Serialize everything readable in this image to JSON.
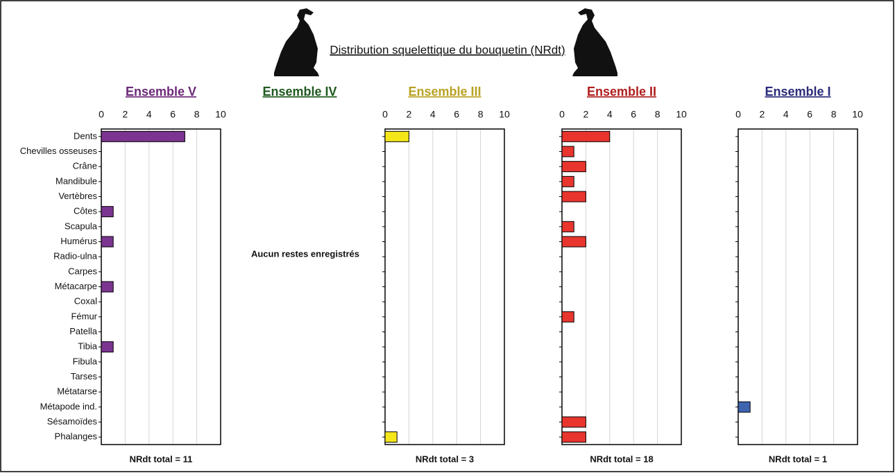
{
  "title": "Distribution squelettique du bouquetin (NRdt)",
  "chart_data": [
    {
      "type": "bar",
      "title": "Ensemble V",
      "title_color": "#6b2a78",
      "color": "#7b3590",
      "categories": [
        "Dents",
        "Chevilles osseuses",
        "Crâne",
        "Mandibule",
        "Vertèbres",
        "Côtes",
        "Scapula",
        "Humérus",
        "Radio-ulna",
        "Carpes",
        "Métacarpe",
        "Coxal",
        "Fémur",
        "Patella",
        "Tibia",
        "Fibula",
        "Tarses",
        "Métatarse",
        "Métapode ind.",
        "Sésamoïdes",
        "Phalanges"
      ],
      "values": [
        7,
        0,
        0,
        0,
        0,
        1,
        0,
        1,
        0,
        0,
        1,
        0,
        0,
        0,
        1,
        0,
        0,
        0,
        0,
        0,
        0
      ],
      "xlim": [
        0,
        10
      ],
      "xticks": [
        0,
        2,
        4,
        6,
        8,
        10
      ],
      "grid": true,
      "note": "NRdt total = 11"
    },
    {
      "type": "bar",
      "title": "Ensemble IV",
      "title_color": "#1f5a1f",
      "annotation": "Aucun restes  enregistrés"
    },
    {
      "type": "bar",
      "title": "Ensemble III",
      "title_color": "#b8a224",
      "color": "#f5e61a",
      "values": [
        2,
        0,
        0,
        0,
        0,
        0,
        0,
        0,
        0,
        0,
        0,
        0,
        0,
        0,
        0,
        0,
        0,
        0,
        0,
        0,
        1
      ],
      "xlim": [
        0,
        10
      ],
      "xticks": [
        0,
        2,
        4,
        6,
        8,
        10
      ],
      "grid": true,
      "note": "NRdt total = 3"
    },
    {
      "type": "bar",
      "title": "Ensemble II",
      "title_color": "#b01e1e",
      "color": "#e8352e",
      "values": [
        4,
        1,
        2,
        1,
        2,
        0,
        1,
        2,
        0,
        0,
        0,
        0,
        1,
        0,
        0,
        0,
        0,
        0,
        0,
        2,
        2
      ],
      "xlim": [
        0,
        10
      ],
      "xticks": [
        0,
        2,
        4,
        6,
        8,
        10
      ],
      "grid": true,
      "note": "NRdt total = 18"
    },
    {
      "type": "bar",
      "title": "Ensemble I",
      "title_color": "#2a2a7a",
      "color": "#3e64b0",
      "values": [
        0,
        0,
        0,
        0,
        0,
        0,
        0,
        0,
        0,
        0,
        0,
        0,
        0,
        0,
        0,
        0,
        0,
        0,
        1,
        0,
        0
      ],
      "xlim": [
        0,
        10
      ],
      "xticks": [
        0,
        2,
        4,
        6,
        8,
        10
      ],
      "grid": true,
      "note": "NRdt total = 1"
    }
  ]
}
